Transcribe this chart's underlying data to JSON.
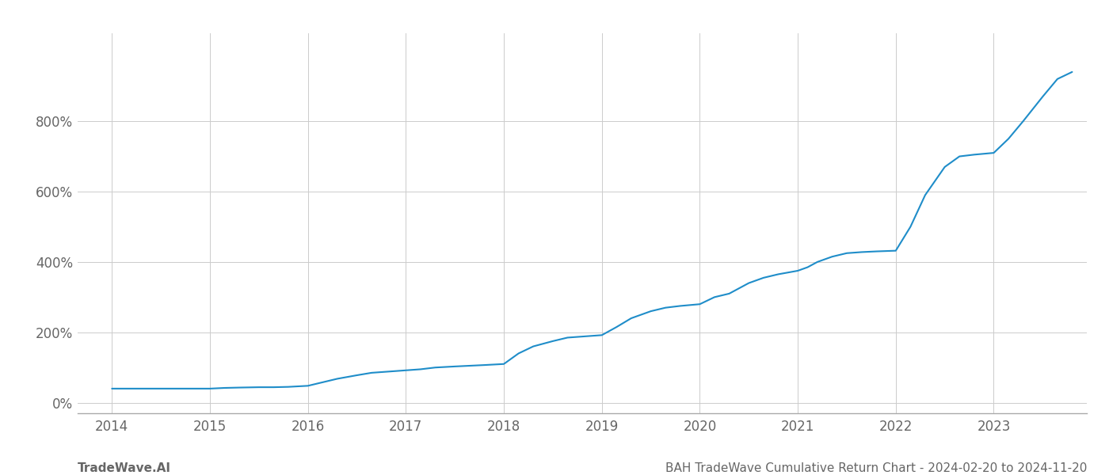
{
  "title": "BAH TradeWave Cumulative Return Chart - 2024-02-20 to 2024-11-20",
  "watermark": "TradeWave.AI",
  "line_color": "#1f8dc9",
  "background_color": "#ffffff",
  "grid_color": "#cccccc",
  "x_years": [
    2014,
    2015,
    2016,
    2017,
    2018,
    2019,
    2020,
    2021,
    2022,
    2023
  ],
  "y_ticks": [
    0,
    200,
    400,
    600,
    800
  ],
  "ylim": [
    -30,
    1050
  ],
  "xlim": [
    2013.65,
    2023.95
  ],
  "data_x": [
    2014.0,
    2014.15,
    2014.3,
    2014.5,
    2014.7,
    2014.85,
    2015.0,
    2015.15,
    2015.3,
    2015.5,
    2015.65,
    2015.8,
    2016.0,
    2016.15,
    2016.3,
    2016.5,
    2016.65,
    2016.8,
    2017.0,
    2017.15,
    2017.3,
    2017.5,
    2017.65,
    2017.8,
    2018.0,
    2018.15,
    2018.3,
    2018.5,
    2018.65,
    2018.8,
    2019.0,
    2019.15,
    2019.3,
    2019.5,
    2019.65,
    2019.8,
    2020.0,
    2020.15,
    2020.3,
    2020.5,
    2020.65,
    2020.8,
    2021.0,
    2021.1,
    2021.2,
    2021.35,
    2021.5,
    2021.65,
    2021.8,
    2022.0,
    2022.15,
    2022.3,
    2022.5,
    2022.65,
    2022.8,
    2023.0,
    2023.15,
    2023.3,
    2023.5,
    2023.65,
    2023.8
  ],
  "data_y": [
    40,
    40,
    40,
    40,
    40,
    40,
    40,
    42,
    43,
    44,
    44,
    45,
    48,
    58,
    68,
    78,
    85,
    88,
    92,
    95,
    100,
    103,
    105,
    107,
    110,
    140,
    160,
    175,
    185,
    188,
    192,
    215,
    240,
    260,
    270,
    275,
    280,
    300,
    310,
    340,
    355,
    365,
    375,
    385,
    400,
    415,
    425,
    428,
    430,
    432,
    500,
    590,
    670,
    700,
    705,
    710,
    750,
    800,
    870,
    920,
    940
  ],
  "title_fontsize": 11,
  "watermark_fontsize": 11,
  "tick_fontsize": 12,
  "line_width": 1.5
}
